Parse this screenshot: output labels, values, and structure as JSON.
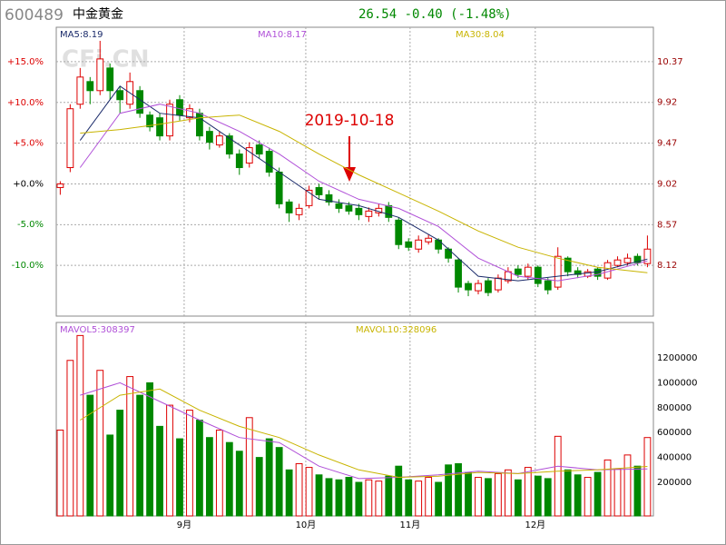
{
  "header": {
    "code": "600489",
    "name": "中金黄金",
    "quote": "26.54 -0.40 (-1.48%)"
  },
  "chart_data": [
    {
      "type": "candlestick",
      "watermark": "CFi.CN",
      "annotation": "2019-10-18",
      "up_color": "#dd0000",
      "down_color": "#008800",
      "xlim": [
        -0.4,
        59.6
      ],
      "ylim": [
        7.56,
        10.75
      ],
      "yticks": [
        8.12,
        8.57,
        9.02,
        9.47,
        9.92,
        10.37
      ],
      "y2lim": [
        -16.25,
        19.24
      ],
      "y2ticks": [
        {
          "value": -10,
          "label": "-10.0%"
        },
        {
          "value": -5,
          "label": "-5.0%"
        },
        {
          "value": 0,
          "label": "+0.0%"
        },
        {
          "value": 5,
          "label": "+5.0%"
        },
        {
          "value": 10,
          "label": "+10.0%"
        },
        {
          "value": 15,
          "label": "+15.0%"
        }
      ],
      "grid": true,
      "open": [
        8.98,
        9.2,
        9.9,
        10.15,
        10.05,
        10.3,
        10.05,
        9.9,
        10.05,
        9.78,
        9.75,
        9.55,
        9.95,
        9.75,
        9.8,
        9.6,
        9.45,
        9.55,
        9.35,
        9.25,
        9.45,
        9.38,
        9.15,
        8.82,
        8.68,
        8.78,
        8.98,
        8.9,
        8.8,
        8.78,
        8.75,
        8.66,
        8.7,
        8.78,
        8.62,
        8.38,
        8.3,
        8.38,
        8.4,
        8.3,
        8.18,
        7.92,
        7.84,
        7.95,
        7.85,
        7.95,
        8.08,
        8.0,
        8.1,
        7.95,
        7.88,
        8.2,
        8.06,
        8.0,
        8.08,
        7.98,
        8.12,
        8.15,
        8.22,
        8.14
      ],
      "high": [
        9.05,
        9.9,
        10.3,
        10.2,
        10.6,
        10.35,
        10.1,
        10.25,
        10.1,
        9.82,
        9.8,
        9.95,
        10.0,
        9.9,
        9.85,
        9.65,
        9.6,
        9.58,
        9.4,
        9.48,
        9.5,
        9.42,
        9.2,
        8.85,
        8.8,
        9.0,
        9.02,
        8.95,
        8.85,
        8.82,
        8.8,
        8.76,
        8.8,
        8.82,
        8.65,
        8.42,
        8.45,
        8.46,
        8.42,
        8.32,
        8.2,
        7.95,
        7.96,
        7.98,
        8.02,
        8.1,
        8.12,
        8.14,
        8.12,
        7.98,
        8.32,
        8.22,
        8.1,
        8.08,
        8.1,
        8.18,
        8.22,
        8.25,
        8.25,
        8.45
      ],
      "low": [
        8.9,
        9.15,
        9.85,
        9.9,
        10.0,
        9.95,
        9.8,
        9.85,
        9.75,
        9.6,
        9.5,
        9.5,
        9.72,
        9.7,
        9.5,
        9.4,
        9.42,
        9.3,
        9.12,
        9.2,
        9.3,
        9.1,
        8.75,
        8.6,
        8.62,
        8.75,
        8.85,
        8.78,
        8.7,
        8.68,
        8.62,
        8.6,
        8.66,
        8.6,
        8.3,
        8.28,
        8.26,
        8.35,
        8.25,
        8.15,
        7.82,
        7.78,
        7.8,
        7.78,
        7.82,
        7.92,
        7.98,
        7.96,
        7.88,
        7.8,
        7.85,
        8.0,
        7.98,
        7.98,
        7.96,
        7.96,
        8.1,
        8.12,
        8.12,
        8.1
      ],
      "close": [
        9.02,
        9.85,
        10.2,
        10.05,
        10.4,
        10.05,
        9.95,
        10.15,
        9.8,
        9.65,
        9.55,
        9.9,
        9.78,
        9.85,
        9.55,
        9.48,
        9.55,
        9.35,
        9.2,
        9.42,
        9.35,
        9.15,
        8.8,
        8.7,
        8.75,
        8.95,
        8.9,
        8.82,
        8.75,
        8.72,
        8.68,
        8.72,
        8.75,
        8.65,
        8.35,
        8.32,
        8.4,
        8.42,
        8.3,
        8.2,
        7.88,
        7.85,
        7.92,
        7.82,
        7.98,
        8.05,
        8.02,
        8.1,
        7.92,
        7.85,
        8.22,
        8.05,
        8.02,
        8.05,
        8.0,
        8.15,
        8.18,
        8.2,
        8.15,
        8.3
      ],
      "series": [
        {
          "name": "MA5:8.19",
          "color": "#1a2a6a",
          "x": [
            2,
            6,
            10,
            14,
            18,
            22,
            26,
            30,
            34,
            38,
            42,
            46,
            50,
            54,
            59
          ],
          "values": [
            9.5,
            10.1,
            9.8,
            9.75,
            9.45,
            9.15,
            8.85,
            8.78,
            8.65,
            8.4,
            8.0,
            7.95,
            8.0,
            8.05,
            8.19
          ]
        },
        {
          "name": "MA10:8.17",
          "color": "#b050d8",
          "x": [
            2,
            6,
            10,
            14,
            18,
            22,
            26,
            30,
            34,
            38,
            42,
            46,
            50,
            54,
            59
          ],
          "values": [
            9.2,
            9.8,
            9.9,
            9.8,
            9.6,
            9.35,
            9.05,
            8.85,
            8.75,
            8.55,
            8.2,
            8.0,
            7.95,
            8.02,
            8.17
          ]
        },
        {
          "name": "MA30:8.04",
          "color": "#c8b400",
          "x": [
            2,
            6,
            10,
            14,
            18,
            22,
            26,
            30,
            34,
            38,
            42,
            46,
            50,
            54,
            59
          ],
          "values": [
            9.58,
            9.62,
            9.68,
            9.75,
            9.78,
            9.6,
            9.35,
            9.12,
            8.92,
            8.72,
            8.5,
            8.32,
            8.2,
            8.1,
            8.04
          ]
        }
      ]
    },
    {
      "type": "volume",
      "xlim": [
        -0.4,
        59.6
      ],
      "xticks": [
        {
          "value": 12.45,
          "label": "9月"
        },
        {
          "value": 24.67,
          "label": "10月"
        },
        {
          "value": 35.15,
          "label": "11月"
        },
        {
          "value": 47.73,
          "label": "12月"
        }
      ],
      "ylim": [
        -70000,
        1485000
      ],
      "yticks": [
        200000,
        400000,
        600000,
        800000,
        1000000,
        1200000
      ],
      "values": [
        620000,
        1180000,
        1380000,
        900000,
        1100000,
        580000,
        780000,
        1050000,
        900000,
        1000000,
        650000,
        820000,
        550000,
        780000,
        700000,
        560000,
        620000,
        520000,
        450000,
        720000,
        400000,
        550000,
        480000,
        300000,
        350000,
        320000,
        260000,
        230000,
        220000,
        240000,
        200000,
        220000,
        210000,
        250000,
        330000,
        220000,
        210000,
        240000,
        200000,
        340000,
        350000,
        280000,
        240000,
        230000,
        270000,
        300000,
        220000,
        320000,
        250000,
        230000,
        570000,
        300000,
        260000,
        240000,
        280000,
        380000,
        310000,
        420000,
        330000,
        560000
      ],
      "series": [
        {
          "name": "MAVOL5:308397",
          "color": "#b050d8",
          "x": [
            2,
            6,
            10,
            14,
            18,
            22,
            26,
            30,
            34,
            38,
            42,
            46,
            50,
            54,
            59
          ],
          "values": [
            900000,
            1000000,
            850000,
            700000,
            560000,
            520000,
            330000,
            230000,
            240000,
            260000,
            290000,
            270000,
            330000,
            300000,
            308397
          ]
        },
        {
          "name": "MAVOL10:328096",
          "color": "#c8b400",
          "x": [
            2,
            6,
            10,
            14,
            18,
            22,
            26,
            30,
            34,
            38,
            42,
            46,
            50,
            54,
            59
          ],
          "values": [
            700000,
            900000,
            950000,
            780000,
            650000,
            560000,
            420000,
            300000,
            240000,
            250000,
            280000,
            270000,
            290000,
            300000,
            328096
          ]
        }
      ]
    }
  ]
}
